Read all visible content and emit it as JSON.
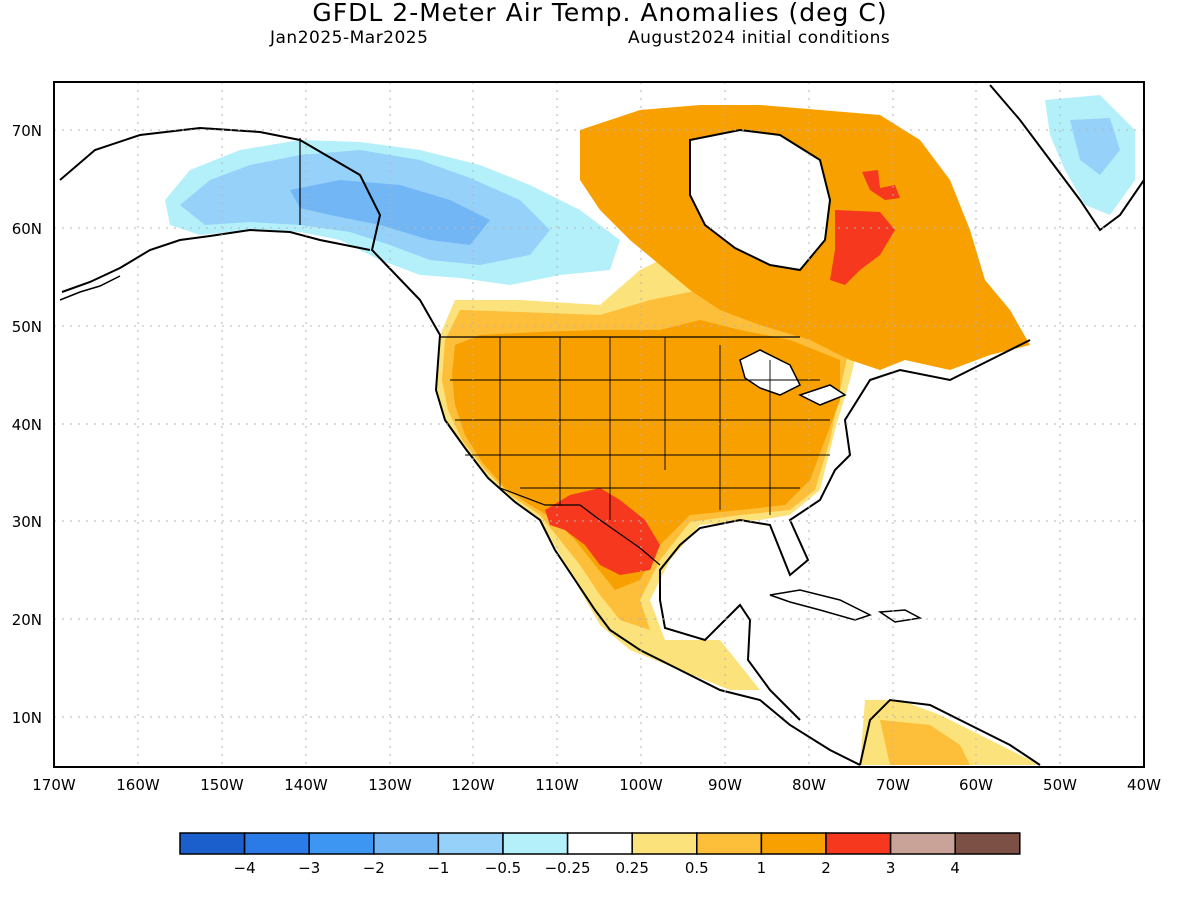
{
  "title": "GFDL 2-Meter Air Temp. Anomalies (deg C)",
  "subtitle_period": "Jan2025-Mar2025",
  "subtitle_init": "August2024 initial conditions",
  "map": {
    "projection": "cylindrical",
    "lon_range": [
      -170,
      -40
    ],
    "lat_range": [
      5,
      75
    ],
    "grid": "dotted",
    "lon_ticks": [
      "170W",
      "160W",
      "150W",
      "140W",
      "130W",
      "120W",
      "110W",
      "100W",
      "90W",
      "80W",
      "70W",
      "60W",
      "50W",
      "40W"
    ],
    "lat_ticks": [
      "10N",
      "20N",
      "30N",
      "40N",
      "50N",
      "60N",
      "70N"
    ],
    "regions": [
      {
        "name": "Alaska / Yukon / NW Canada",
        "category": "-1 to -0.5"
      },
      {
        "name": "Greenland interior",
        "category": "-1 to -0.5"
      },
      {
        "name": "Contiguous US",
        "category": "1 to 2"
      },
      {
        "name": "Texas / northern Mexico",
        "category": "2 to 3"
      },
      {
        "name": "Eastern Canada / Quebec",
        "category": "1 to 2"
      },
      {
        "name": "Labrador",
        "category": "2 to 3"
      },
      {
        "name": "Central Mexico / Central America",
        "category": "0.5 to 1"
      }
    ]
  },
  "colorbar": {
    "colors": [
      "#1a5fcc",
      "#2a7ae8",
      "#3d96f2",
      "#72b6f5",
      "#96d1fa",
      "#b4f0fa",
      "#ffffff",
      "#fce27a",
      "#fdbe3a",
      "#f7a000",
      "#f5381e",
      "#c9a298",
      "#7c5044"
    ],
    "labels": [
      "-4",
      "-3",
      "-2",
      "-1",
      "-0.5",
      "-0.25",
      "0.25",
      "0.5",
      "1",
      "2",
      "3",
      "4"
    ]
  }
}
